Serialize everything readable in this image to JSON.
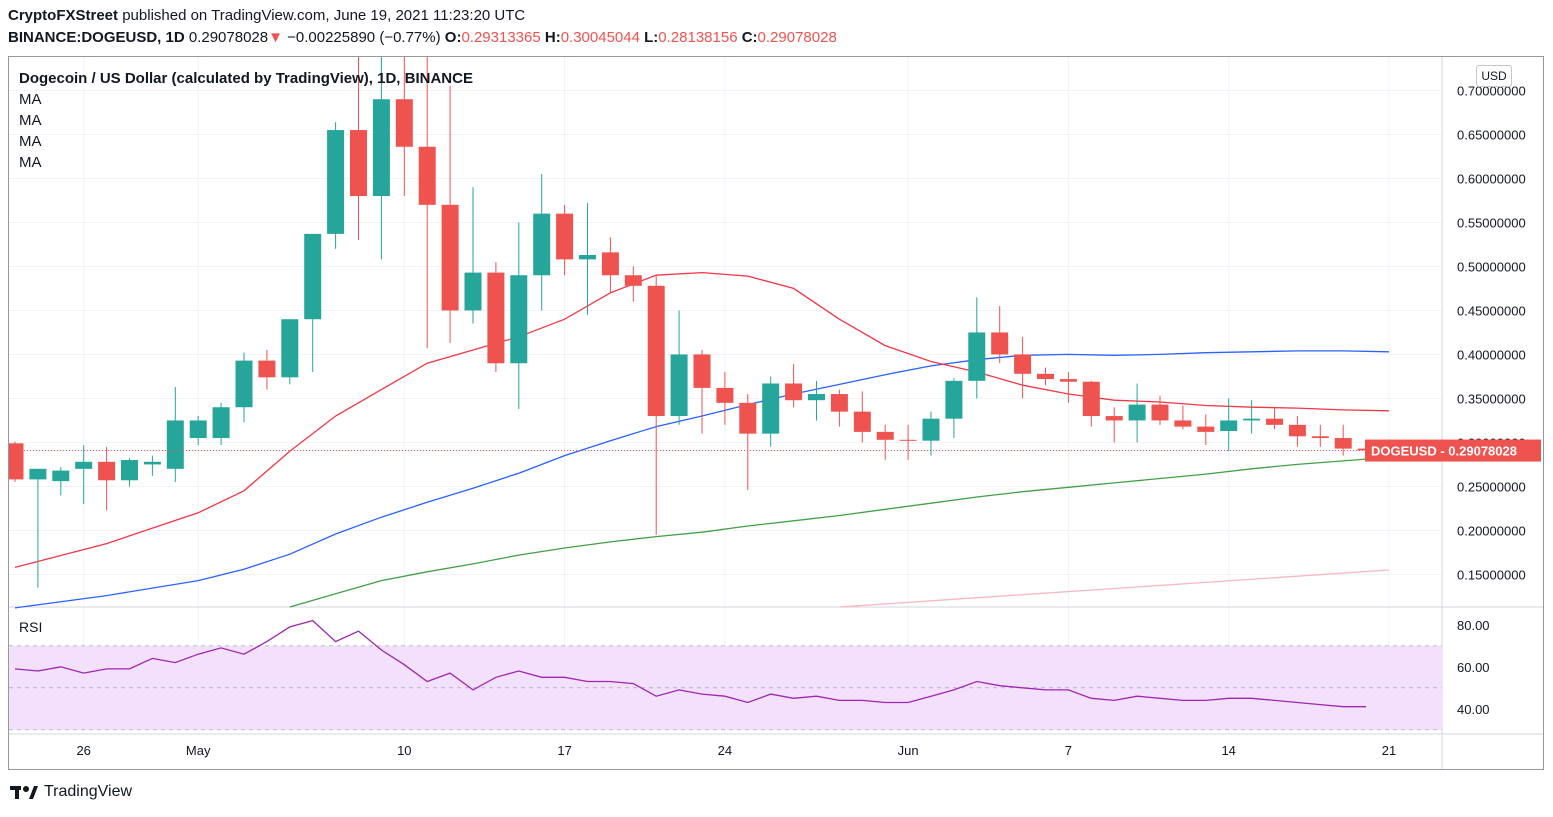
{
  "header": {
    "publisher": "CryptoFXStreet",
    "published_text": "published on TradingView.com, June 19, 2021 11:23:20 UTC",
    "symbol": "BINANCE:DOGEUSD, 1D",
    "last": "0.29078028",
    "change_arrow": "▼",
    "change": "−0.00225890 (−0.77%)",
    "o_label": "O:",
    "o": "0.29313365",
    "h_label": "H:",
    "h": "0.30045044",
    "l_label": "L:",
    "l": "0.28138156",
    "c_label": "C:",
    "c": "0.29078028"
  },
  "legend": {
    "title": "Dogecoin / US Dollar (calculated by TradingView), 1D, BINANCE",
    "ma1": "MA",
    "ma2": "MA",
    "ma3": "MA",
    "ma4": "MA"
  },
  "currency_button": "USD",
  "rsi_label": "RSI",
  "price_tag": {
    "symbol": "DOGEUSD",
    "value": "0.29078028"
  },
  "footer": {
    "brand": "TradingView"
  },
  "colors": {
    "up": "#26a69a",
    "down": "#ef5350",
    "ma_red": "#f23645",
    "ma_blue": "#2962ff",
    "ma_green": "#43a047",
    "ma_pink": "#f8b8c0",
    "rsi": "#9c27b0",
    "rsi_band": "#f3e0fd"
  },
  "chart_data": {
    "type": "candlestick",
    "title": "Dogecoin / US Dollar (calculated by TradingView), 1D, BINANCE",
    "y_axis": {
      "range": [
        0.113,
        0.738
      ],
      "ticks": [
        "0.15000000",
        "0.20000000",
        "0.25000000",
        "0.30000000",
        "0.35000000",
        "0.40000000",
        "0.45000000",
        "0.50000000",
        "0.55000000",
        "0.60000000",
        "0.65000000",
        "0.70000000"
      ]
    },
    "x_axis": {
      "labels": [
        {
          "label": "26",
          "index": 3
        },
        {
          "label": "May",
          "index": 8
        },
        {
          "label": "10",
          "index": 17
        },
        {
          "label": "17",
          "index": 24
        },
        {
          "label": "24",
          "index": 31
        },
        {
          "label": "Jun",
          "index": 39
        },
        {
          "label": "7",
          "index": 46
        },
        {
          "label": "14",
          "index": 53
        },
        {
          "label": "21",
          "index": 60
        }
      ],
      "count": 62
    },
    "candles": [
      [
        0.299,
        0.301,
        0.255,
        0.258
      ],
      [
        0.258,
        0.27,
        0.135,
        0.27
      ],
      [
        0.256,
        0.272,
        0.24,
        0.268
      ],
      [
        0.27,
        0.297,
        0.23,
        0.278
      ],
      [
        0.278,
        0.295,
        0.223,
        0.257
      ],
      [
        0.257,
        0.282,
        0.25,
        0.28
      ],
      [
        0.275,
        0.285,
        0.262,
        0.278
      ],
      [
        0.27,
        0.363,
        0.255,
        0.325
      ],
      [
        0.305,
        0.33,
        0.297,
        0.325
      ],
      [
        0.305,
        0.345,
        0.297,
        0.34
      ],
      [
        0.34,
        0.402,
        0.323,
        0.393
      ],
      [
        0.393,
        0.405,
        0.36,
        0.374
      ],
      [
        0.374,
        0.44,
        0.366,
        0.44
      ],
      [
        0.44,
        0.535,
        0.38,
        0.537
      ],
      [
        0.537,
        0.664,
        0.52,
        0.655
      ],
      [
        0.655,
        0.74,
        0.53,
        0.58
      ],
      [
        0.58,
        0.74,
        0.508,
        0.69
      ],
      [
        0.69,
        0.74,
        0.58,
        0.636
      ],
      [
        0.636,
        0.74,
        0.407,
        0.57
      ],
      [
        0.57,
        0.705,
        0.413,
        0.45
      ],
      [
        0.45,
        0.59,
        0.435,
        0.493
      ],
      [
        0.493,
        0.505,
        0.38,
        0.39
      ],
      [
        0.39,
        0.55,
        0.338,
        0.49
      ],
      [
        0.49,
        0.605,
        0.45,
        0.56
      ],
      [
        0.56,
        0.57,
        0.49,
        0.508
      ],
      [
        0.508,
        0.572,
        0.445,
        0.513
      ],
      [
        0.516,
        0.533,
        0.47,
        0.49
      ],
      [
        0.49,
        0.5,
        0.46,
        0.478
      ],
      [
        0.478,
        0.49,
        0.195,
        0.33
      ],
      [
        0.33,
        0.45,
        0.32,
        0.4
      ],
      [
        0.4,
        0.405,
        0.31,
        0.362
      ],
      [
        0.362,
        0.38,
        0.32,
        0.345
      ],
      [
        0.345,
        0.355,
        0.246,
        0.31
      ],
      [
        0.31,
        0.375,
        0.295,
        0.367
      ],
      [
        0.367,
        0.389,
        0.34,
        0.348
      ],
      [
        0.348,
        0.37,
        0.325,
        0.355
      ],
      [
        0.355,
        0.36,
        0.318,
        0.335
      ],
      [
        0.335,
        0.358,
        0.3,
        0.312
      ],
      [
        0.312,
        0.32,
        0.28,
        0.303
      ],
      [
        0.303,
        0.32,
        0.28,
        0.302
      ],
      [
        0.302,
        0.335,
        0.285,
        0.327
      ],
      [
        0.327,
        0.373,
        0.305,
        0.37
      ],
      [
        0.37,
        0.465,
        0.35,
        0.425
      ],
      [
        0.425,
        0.455,
        0.39,
        0.4
      ],
      [
        0.4,
        0.42,
        0.35,
        0.378
      ],
      [
        0.378,
        0.385,
        0.365,
        0.372
      ],
      [
        0.372,
        0.38,
        0.345,
        0.369
      ],
      [
        0.369,
        0.37,
        0.318,
        0.33
      ],
      [
        0.33,
        0.34,
        0.3,
        0.325
      ],
      [
        0.325,
        0.367,
        0.3,
        0.343
      ],
      [
        0.343,
        0.353,
        0.32,
        0.325
      ],
      [
        0.325,
        0.342,
        0.315,
        0.318
      ],
      [
        0.318,
        0.332,
        0.297,
        0.312
      ],
      [
        0.313,
        0.35,
        0.29,
        0.325
      ],
      [
        0.325,
        0.348,
        0.31,
        0.327
      ],
      [
        0.327,
        0.34,
        0.315,
        0.32
      ],
      [
        0.32,
        0.33,
        0.295,
        0.307
      ],
      [
        0.307,
        0.32,
        0.295,
        0.305
      ],
      [
        0.305,
        0.32,
        0.285,
        0.293
      ],
      [
        0.293,
        0.3,
        0.281,
        0.291
      ]
    ],
    "ma_red": [
      [
        0,
        0.158
      ],
      [
        4,
        0.185
      ],
      [
        8,
        0.22
      ],
      [
        10,
        0.245
      ],
      [
        12,
        0.29
      ],
      [
        14,
        0.33
      ],
      [
        16,
        0.36
      ],
      [
        18,
        0.39
      ],
      [
        20,
        0.405
      ],
      [
        22,
        0.42
      ],
      [
        24,
        0.44
      ],
      [
        26,
        0.47
      ],
      [
        28,
        0.49
      ],
      [
        30,
        0.493
      ],
      [
        32,
        0.489
      ],
      [
        34,
        0.475
      ],
      [
        36,
        0.44
      ],
      [
        38,
        0.41
      ],
      [
        40,
        0.392
      ],
      [
        42,
        0.38
      ],
      [
        44,
        0.365
      ],
      [
        46,
        0.355
      ],
      [
        48,
        0.348
      ],
      [
        50,
        0.346
      ],
      [
        52,
        0.342
      ],
      [
        54,
        0.34
      ],
      [
        56,
        0.339
      ],
      [
        58,
        0.337
      ],
      [
        60,
        0.336
      ]
    ],
    "ma_blue": [
      [
        0,
        0.112
      ],
      [
        4,
        0.126
      ],
      [
        8,
        0.143
      ],
      [
        10,
        0.156
      ],
      [
        12,
        0.173
      ],
      [
        14,
        0.196
      ],
      [
        16,
        0.215
      ],
      [
        18,
        0.232
      ],
      [
        20,
        0.248
      ],
      [
        22,
        0.265
      ],
      [
        24,
        0.285
      ],
      [
        26,
        0.302
      ],
      [
        28,
        0.318
      ],
      [
        30,
        0.33
      ],
      [
        32,
        0.343
      ],
      [
        34,
        0.355
      ],
      [
        36,
        0.366
      ],
      [
        38,
        0.377
      ],
      [
        40,
        0.387
      ],
      [
        42,
        0.394
      ],
      [
        44,
        0.399
      ],
      [
        46,
        0.4
      ],
      [
        48,
        0.399
      ],
      [
        50,
        0.4
      ],
      [
        52,
        0.402
      ],
      [
        54,
        0.403
      ],
      [
        56,
        0.404
      ],
      [
        58,
        0.404
      ],
      [
        60,
        0.403
      ]
    ],
    "ma_green": [
      [
        12,
        0.113
      ],
      [
        14,
        0.128
      ],
      [
        16,
        0.143
      ],
      [
        18,
        0.153
      ],
      [
        20,
        0.162
      ],
      [
        22,
        0.172
      ],
      [
        24,
        0.18
      ],
      [
        26,
        0.187
      ],
      [
        28,
        0.193
      ],
      [
        30,
        0.198
      ],
      [
        32,
        0.205
      ],
      [
        34,
        0.211
      ],
      [
        36,
        0.217
      ],
      [
        38,
        0.224
      ],
      [
        40,
        0.231
      ],
      [
        42,
        0.238
      ],
      [
        44,
        0.244
      ],
      [
        46,
        0.249
      ],
      [
        48,
        0.254
      ],
      [
        50,
        0.259
      ],
      [
        52,
        0.264
      ],
      [
        54,
        0.27
      ],
      [
        56,
        0.275
      ],
      [
        58,
        0.279
      ],
      [
        60,
        0.283
      ]
    ],
    "ma_pink": [
      [
        36,
        0.113
      ],
      [
        40,
        0.12
      ],
      [
        44,
        0.127
      ],
      [
        48,
        0.134
      ],
      [
        52,
        0.141
      ],
      [
        56,
        0.148
      ],
      [
        60,
        0.155
      ]
    ],
    "rsi": {
      "range": [
        28,
        88
      ],
      "ticks": [
        "40.00",
        "60.00",
        "80.00"
      ],
      "band": [
        30,
        70
      ],
      "values": [
        59,
        58,
        60,
        57,
        59,
        59,
        64,
        62,
        66,
        69,
        66,
        72,
        79,
        82,
        72,
        77,
        68,
        61,
        53,
        57,
        49,
        55,
        58,
        55,
        55,
        53,
        53,
        52,
        46,
        49,
        47,
        46,
        43,
        47,
        45,
        46,
        44,
        44,
        43,
        43,
        46,
        49,
        53,
        51,
        50,
        49,
        49,
        45,
        44,
        46,
        45,
        44,
        44,
        45,
        45,
        44,
        43,
        42,
        41,
        41
      ]
    }
  }
}
